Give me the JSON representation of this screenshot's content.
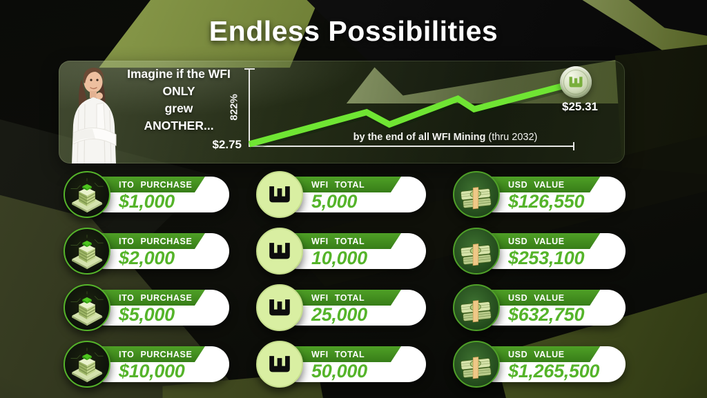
{
  "title": "Endless Possibilities",
  "panel": {
    "prompt_lines": [
      "Imagine if the WFI",
      "ONLY",
      "grew",
      "ANOTHER..."
    ],
    "growth_pct": "822%",
    "start_price": "$2.75",
    "end_price": "$25.31",
    "x_label_bold": "by the end of all WFI Mining",
    "x_label_note": "(thru 2032)"
  },
  "table": {
    "rows": [
      {
        "ito_label": "ITO PURCHASE",
        "ito_value": "$1,000",
        "wfi_label": "WFI TOTAL",
        "wfi_value": "5,000",
        "usd_label": "USD VALUE",
        "usd_value": "$126,550"
      },
      {
        "ito_label": "ITO PURCHASE",
        "ito_value": "$2,000",
        "wfi_label": "WFI TOTAL",
        "wfi_value": "10,000",
        "usd_label": "USD VALUE",
        "usd_value": "$253,100"
      },
      {
        "ito_label": "ITO PURCHASE",
        "ito_value": "$5,000",
        "wfi_label": "WFI TOTAL",
        "wfi_value": "25,000",
        "usd_label": "USD VALUE",
        "usd_value": "$632,750"
      },
      {
        "ito_label": "ITO PURCHASE",
        "ito_value": "$10,000",
        "wfi_label": "WFI TOTAL",
        "wfi_value": "50,000",
        "usd_label": "USD VALUE",
        "usd_value": "$1,265,500"
      }
    ]
  },
  "chart_data": [
    {
      "type": "line",
      "title": "Imagine if the WFI ONLY grew ANOTHER 822%",
      "ylabel": "822%",
      "xlabel": "by the end of all WFI Mining (thru 2032)",
      "start_label": "$2.75",
      "end_label": "$25.31",
      "start_value_usd": 2.75,
      "end_value_usd": 25.31,
      "growth_percent": 822,
      "points_pct": [
        [
          0,
          0
        ],
        [
          36,
          52
        ],
        [
          43,
          32
        ],
        [
          64,
          74
        ],
        [
          69,
          57
        ],
        [
          100,
          100
        ]
      ],
      "legend_position": "none",
      "grid": false
    },
    {
      "type": "table",
      "columns": [
        "ITO PURCHASE",
        "WFI TOTAL",
        "USD VALUE"
      ],
      "rows": [
        [
          "$1,000",
          "5,000",
          "$126,550"
        ],
        [
          "$2,000",
          "10,000",
          "$253,100"
        ],
        [
          "$5,000",
          "25,000",
          "$632,750"
        ],
        [
          "$10,000",
          "50,000",
          "$1,265,500"
        ]
      ]
    }
  ],
  "icons": {
    "ito": "money-stack-icon",
    "wfi": "wfi-coin-icon",
    "usd": "cash-bundle-icon",
    "chart_end": "wfi-coin-icon"
  },
  "colors": {
    "banner_green": "#4fa026",
    "value_green": "#55b42a",
    "line_green": "#6fe533",
    "pale_coin": "#d9efa2",
    "dark_coin_circle": "#2c5a23",
    "olive_bg": "#8b9c4a"
  }
}
